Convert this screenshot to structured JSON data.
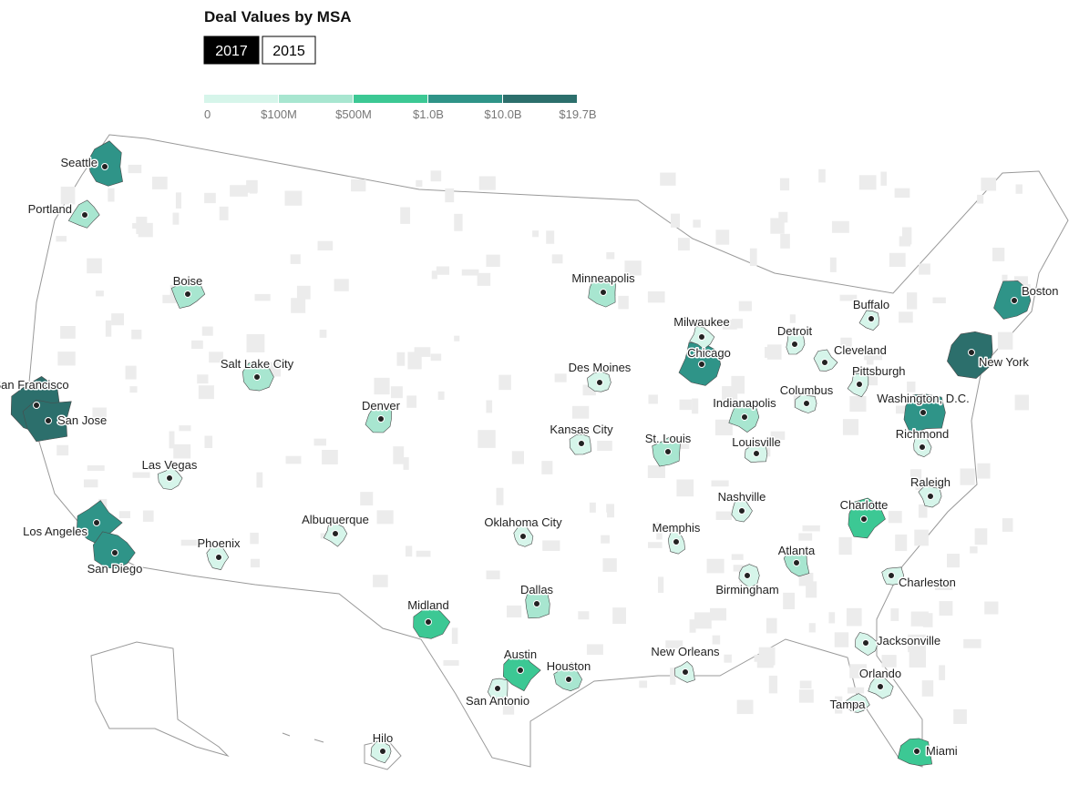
{
  "title": "Deal Values by MSA",
  "buttons": [
    "2017",
    "2015"
  ],
  "selected": 0,
  "legend": {
    "colors": [
      "#d6f5ea",
      "#a8e6d0",
      "#3cc894",
      "#2f9488",
      "#2c6f6c"
    ],
    "labels": [
      "0",
      "$100M",
      "$500M",
      "$1.0B",
      "$10.0B",
      "$19.7B"
    ]
  },
  "cities": [
    {
      "name": "Seattle",
      "level": 3
    },
    {
      "name": "Portland",
      "level": 1
    },
    {
      "name": "Boise",
      "level": 1
    },
    {
      "name": "San Francisco",
      "level": 4
    },
    {
      "name": "San Jose",
      "level": 4
    },
    {
      "name": "Salt Lake City",
      "level": 1
    },
    {
      "name": "Las Vegas",
      "level": 0
    },
    {
      "name": "Los Angeles",
      "level": 3
    },
    {
      "name": "San Diego",
      "level": 3
    },
    {
      "name": "Phoenix",
      "level": 0
    },
    {
      "name": "Albuquerque",
      "level": 0
    },
    {
      "name": "Denver",
      "level": 1
    },
    {
      "name": "Midland",
      "level": 2
    },
    {
      "name": "Dallas",
      "level": 1
    },
    {
      "name": "Oklahoma City",
      "level": 0
    },
    {
      "name": "Austin",
      "level": 2
    },
    {
      "name": "San Antonio",
      "level": 0
    },
    {
      "name": "Houston",
      "level": 1
    },
    {
      "name": "Kansas City",
      "level": 0
    },
    {
      "name": "Minneapolis",
      "level": 1
    },
    {
      "name": "Des Moines",
      "level": 0
    },
    {
      "name": "St. Louis",
      "level": 1
    },
    {
      "name": "Memphis",
      "level": 0
    },
    {
      "name": "New Orleans",
      "level": 0
    },
    {
      "name": "Chicago",
      "level": 3
    },
    {
      "name": "Milwaukee",
      "level": 0
    },
    {
      "name": "Indianapolis",
      "level": 1
    },
    {
      "name": "Louisville",
      "level": 0
    },
    {
      "name": "Nashville",
      "level": 0
    },
    {
      "name": "Birmingham",
      "level": 0
    },
    {
      "name": "Atlanta",
      "level": 1
    },
    {
      "name": "Detroit",
      "level": 0
    },
    {
      "name": "Cleveland",
      "level": 0
    },
    {
      "name": "Columbus",
      "level": 0
    },
    {
      "name": "Pittsburgh",
      "level": 0
    },
    {
      "name": "Buffalo",
      "level": 0
    },
    {
      "name": "Washington, D.C.",
      "level": 3
    },
    {
      "name": "Richmond",
      "level": 0
    },
    {
      "name": "Raleigh",
      "level": 0
    },
    {
      "name": "Charlotte",
      "level": 2
    },
    {
      "name": "Charleston",
      "level": 0
    },
    {
      "name": "Jacksonville",
      "level": 0
    },
    {
      "name": "Orlando",
      "level": 0
    },
    {
      "name": "Tampa",
      "level": 0
    },
    {
      "name": "Miami",
      "level": 2
    },
    {
      "name": "New York",
      "level": 4
    },
    {
      "name": "Boston",
      "level": 3
    },
    {
      "name": "Hilo",
      "level": 0
    }
  ]
}
